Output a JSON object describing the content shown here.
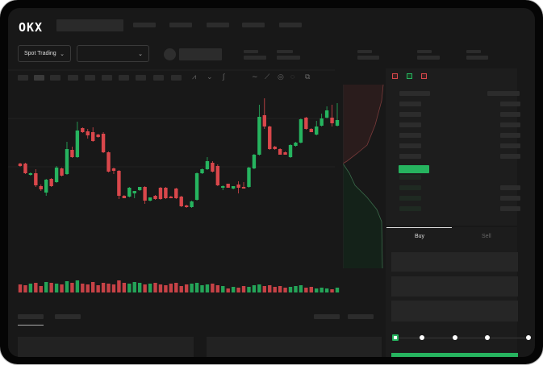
{
  "brand": {
    "logo": "OKX"
  },
  "toolbar": {
    "market_type": "Spot Trading"
  },
  "trade": {
    "buy_label": "Buy",
    "sell_label": "Sell",
    "slider_position_percent": 0
  },
  "colors": {
    "up": "#26b45f",
    "down": "#d9474b",
    "background": "#181818",
    "accent": "#26b45f"
  },
  "icons": [
    "chevron-down-icon",
    "coin-icon",
    "indicator-icon",
    "line-icon",
    "pencil-icon",
    "circle-icon",
    "settings-icon",
    "orderbook-layout-icon"
  ],
  "chart_data": {
    "type": "candlestick",
    "candles": [
      [
        67,
        68,
        63,
        64
      ],
      [
        67,
        68,
        54,
        55
      ],
      [
        53,
        56,
        52,
        55
      ],
      [
        55,
        60,
        38,
        40
      ],
      [
        39,
        41,
        33,
        35
      ],
      [
        31,
        48,
        27,
        47
      ],
      [
        48,
        49,
        38,
        39
      ],
      [
        44,
        64,
        43,
        62
      ],
      [
        61,
        62,
        51,
        52
      ],
      [
        54,
        94,
        53,
        85
      ],
      [
        84,
        88,
        74,
        75
      ],
      [
        75,
        119,
        74,
        108
      ],
      [
        111,
        112,
        105,
        106
      ],
      [
        107,
        110,
        98,
        102
      ],
      [
        106,
        112,
        94,
        95
      ],
      [
        103,
        104,
        99,
        100
      ],
      [
        104,
        106,
        80,
        81
      ],
      [
        81,
        82,
        56,
        57
      ],
      [
        61,
        62,
        54,
        58
      ],
      [
        58,
        59,
        23,
        27
      ],
      [
        27,
        28,
        24,
        24
      ],
      [
        26,
        38,
        25,
        37
      ],
      [
        30,
        33,
        24,
        33
      ],
      [
        34,
        38,
        33,
        38
      ],
      [
        38,
        39,
        17,
        21
      ],
      [
        21,
        25,
        20,
        25
      ],
      [
        27,
        28,
        22,
        23
      ],
      [
        37,
        38,
        22,
        23
      ],
      [
        37,
        38,
        23,
        24
      ],
      [
        26,
        27,
        24,
        24
      ],
      [
        36,
        37,
        23,
        24
      ],
      [
        26,
        27,
        13,
        14
      ],
      [
        15,
        16,
        12,
        13
      ],
      [
        13,
        21,
        12,
        20
      ],
      [
        22,
        56,
        21,
        55
      ],
      [
        55,
        61,
        54,
        60
      ],
      [
        60,
        75,
        59,
        70
      ],
      [
        68,
        70,
        56,
        57
      ],
      [
        64,
        66,
        39,
        40
      ],
      [
        37,
        40,
        34,
        39
      ],
      [
        42,
        42,
        37,
        37
      ],
      [
        36,
        39,
        35,
        39
      ],
      [
        41,
        45,
        30,
        37
      ],
      [
        38,
        44,
        37,
        36
      ],
      [
        38,
        63,
        37,
        62
      ],
      [
        61,
        79,
        60,
        78
      ],
      [
        78,
        140,
        77,
        125
      ],
      [
        127,
        148,
        110,
        113
      ],
      [
        113,
        114,
        84,
        85
      ],
      [
        88,
        89,
        84,
        85
      ],
      [
        85,
        86,
        78,
        78
      ],
      [
        81,
        82,
        78,
        78
      ],
      [
        75,
        91,
        74,
        90
      ],
      [
        89,
        94,
        88,
        93
      ],
      [
        93,
        123,
        92,
        122
      ],
      [
        124,
        125,
        109,
        110
      ],
      [
        110,
        111,
        106,
        106
      ],
      [
        103,
        120,
        102,
        113
      ],
      [
        114,
        129,
        113,
        123
      ],
      [
        124,
        138,
        123,
        133
      ],
      [
        124,
        140,
        113,
        117
      ],
      [
        114,
        142,
        113,
        121
      ]
    ],
    "volume": [
      10,
      9,
      11,
      12,
      8,
      13,
      12,
      11,
      10,
      14,
      12,
      15,
      11,
      10,
      13,
      9,
      12,
      11,
      10,
      15,
      12,
      11,
      13,
      12,
      10,
      11,
      12,
      10,
      9,
      11,
      12,
      8,
      10,
      11,
      12,
      9,
      10,
      11,
      9,
      8,
      5,
      7,
      6,
      8,
      7,
      9,
      10,
      8,
      9,
      7,
      8,
      6,
      7,
      8,
      9,
      6,
      7,
      5,
      6,
      5,
      4,
      6
    ]
  }
}
